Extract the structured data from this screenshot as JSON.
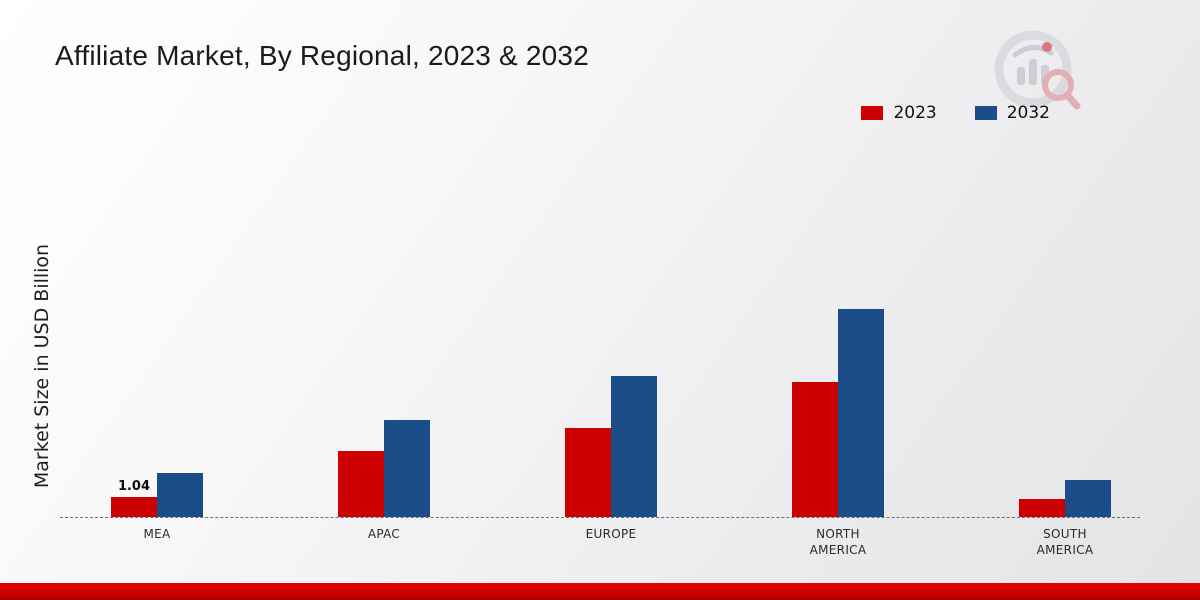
{
  "title": "Affiliate Market, By Regional, 2023 & 2032",
  "ylabel": "Market Size in USD Billion",
  "colors": {
    "series_2023": "#cc0001",
    "series_2032": "#1b4e89",
    "bottom_band": "#d20000",
    "baseline": "#6f6f6f"
  },
  "legend": {
    "position": "top-right",
    "items": [
      "2023",
      "2032"
    ]
  },
  "logo": {
    "name": "market-research-future-watermark"
  },
  "chart_data": {
    "type": "bar",
    "title": "Affiliate Market, By Regional, 2023 & 2032",
    "xlabel": "",
    "ylabel": "Market Size in USD Billion",
    "categories": [
      "MEA",
      "APAC",
      "EUROPE",
      "NORTH AMERICA",
      "SOUTH AMERICA"
    ],
    "series": [
      {
        "name": "2023",
        "color": "#cc0001",
        "values": [
          1.04,
          3.4,
          4.6,
          7.0,
          0.95
        ]
      },
      {
        "name": "2032",
        "color": "#1b4e89",
        "values": [
          2.3,
          5.0,
          7.3,
          10.8,
          1.9
        ]
      }
    ],
    "annotations": [
      {
        "series_index": 0,
        "category_index": 0,
        "text": "1.04"
      }
    ],
    "ylim": [
      0,
      12
    ],
    "grid": false,
    "baseline_style": "dashed",
    "legend_position": "top-right"
  }
}
